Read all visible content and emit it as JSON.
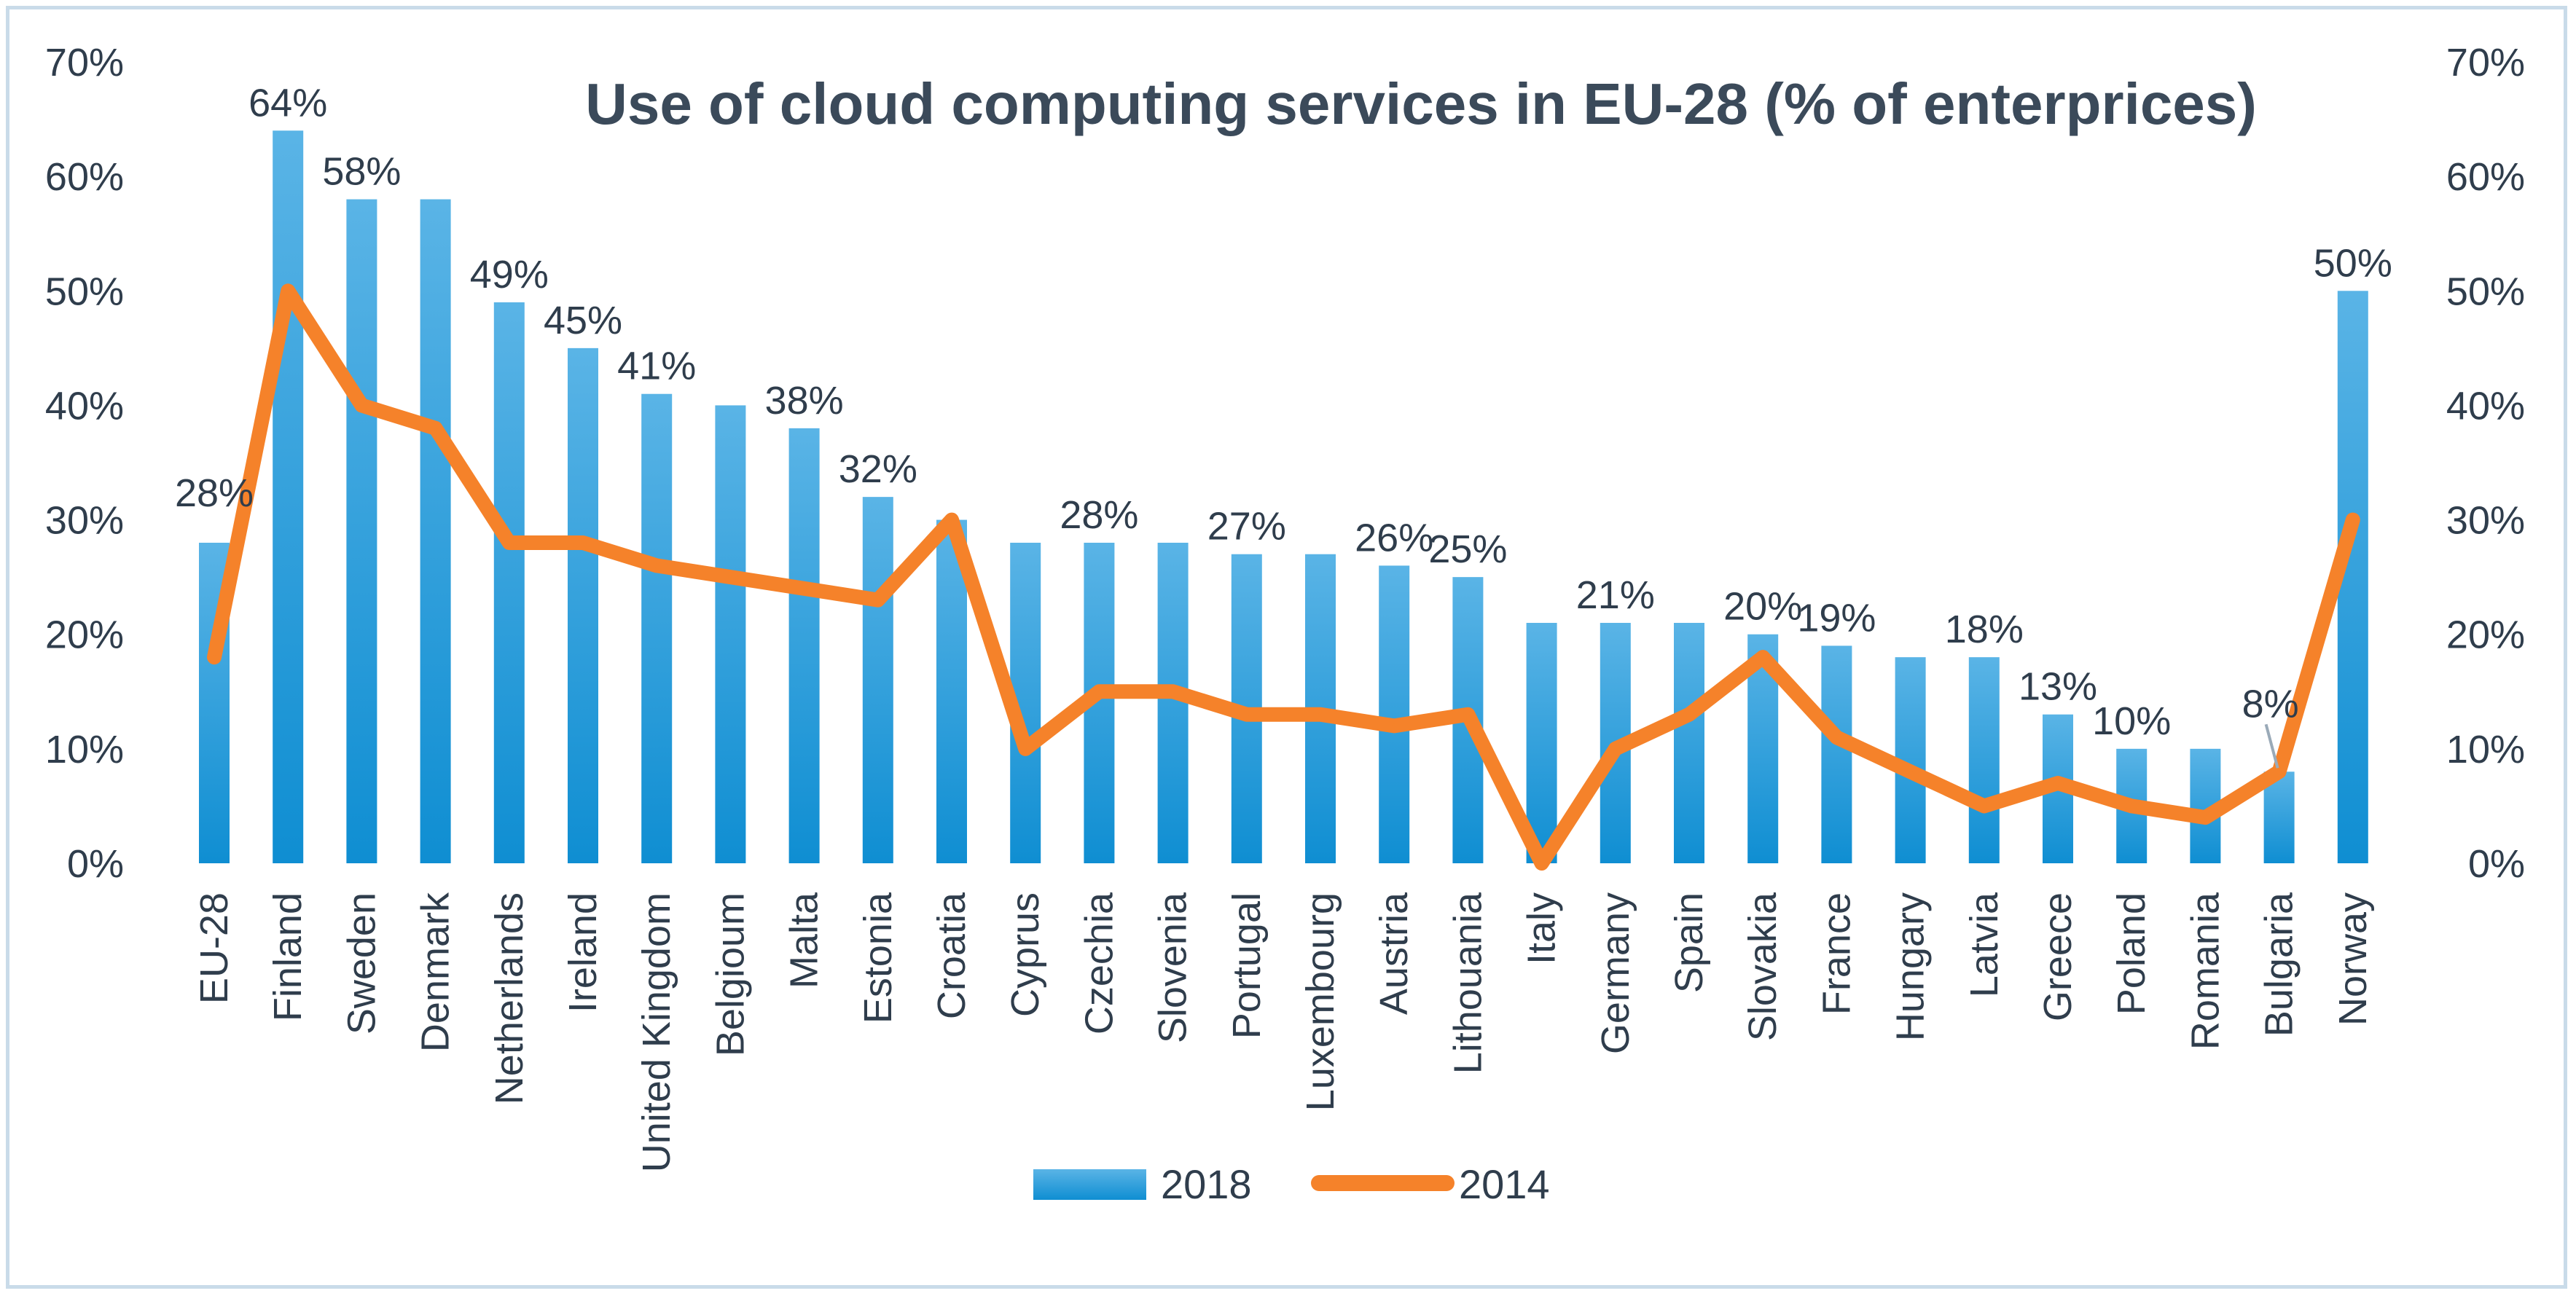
{
  "chart_data": {
    "type": "bar",
    "title": "Use of cloud computing services in EU-28 (% of enterprices)",
    "xlabel": "",
    "ylabel": "",
    "ylim": [
      0,
      70
    ],
    "y_ticks": [
      "0%",
      "10%",
      "20%",
      "30%",
      "40%",
      "50%",
      "60%",
      "70%"
    ],
    "y_tick_values": [
      0,
      10,
      20,
      30,
      40,
      50,
      60,
      70
    ],
    "grid": false,
    "legend_position": "bottom",
    "categories": [
      "EU-28",
      "Finland",
      "Sweden",
      "Denmark",
      "Netherlands",
      "Ireland",
      "United Kingdom",
      "Belgioum",
      "Malta",
      "Estonia",
      "Croatia",
      "Cyprus",
      "Czechia",
      "Slovenia",
      "Portugal",
      "Luxembourg",
      "Austria",
      "Lithouania",
      "Italy",
      "Germany",
      "Spain",
      "Slovakia",
      "France",
      "Hungary",
      "Latvia",
      "Greece",
      "Poland",
      "Romania",
      "Bulgaria",
      "Norway"
    ],
    "series": [
      {
        "name": "2018",
        "kind": "bar",
        "color": "#1f97d4",
        "values": [
          28,
          64,
          58,
          58,
          49,
          45,
          41,
          40,
          38,
          32,
          30,
          28,
          28,
          28,
          27,
          27,
          26,
          25,
          21,
          21,
          21,
          20,
          19,
          18,
          18,
          13,
          10,
          10,
          8,
          50
        ]
      },
      {
        "name": "2014",
        "kind": "line",
        "color": "#f5822a",
        "values": [
          18,
          50,
          40,
          38,
          28,
          28,
          26,
          25,
          24,
          23,
          30,
          10,
          15,
          15,
          13,
          13,
          12,
          13,
          0,
          10,
          13,
          18,
          11,
          8,
          5,
          7,
          5,
          4,
          8,
          30
        ]
      }
    ],
    "data_labels": [
      {
        "category": "EU-28",
        "text": "28%"
      },
      {
        "category": "Finland",
        "text": "64%"
      },
      {
        "category": "Sweden",
        "text": "58%"
      },
      {
        "category": "Netherlands",
        "text": "49%"
      },
      {
        "category": "Ireland",
        "text": "45%"
      },
      {
        "category": "United Kingdom",
        "text": "41%"
      },
      {
        "category": "Malta",
        "text": "38%"
      },
      {
        "category": "Estonia",
        "text": "32%"
      },
      {
        "category": "Czechia",
        "text": "28%"
      },
      {
        "category": "Portugal",
        "text": "27%"
      },
      {
        "category": "Austria",
        "text": "26%"
      },
      {
        "category": "Lithouania",
        "text": "25%"
      },
      {
        "category": "Germany",
        "text": "21%"
      },
      {
        "category": "Slovakia",
        "text": "20%"
      },
      {
        "category": "France",
        "text": "19%"
      },
      {
        "category": "Latvia",
        "text": "18%"
      },
      {
        "category": "Greece",
        "text": "13%"
      },
      {
        "category": "Poland",
        "text": "10%"
      },
      {
        "category": "Bulgaria",
        "text": "8%"
      },
      {
        "category": "Norway",
        "text": "50%"
      }
    ]
  }
}
